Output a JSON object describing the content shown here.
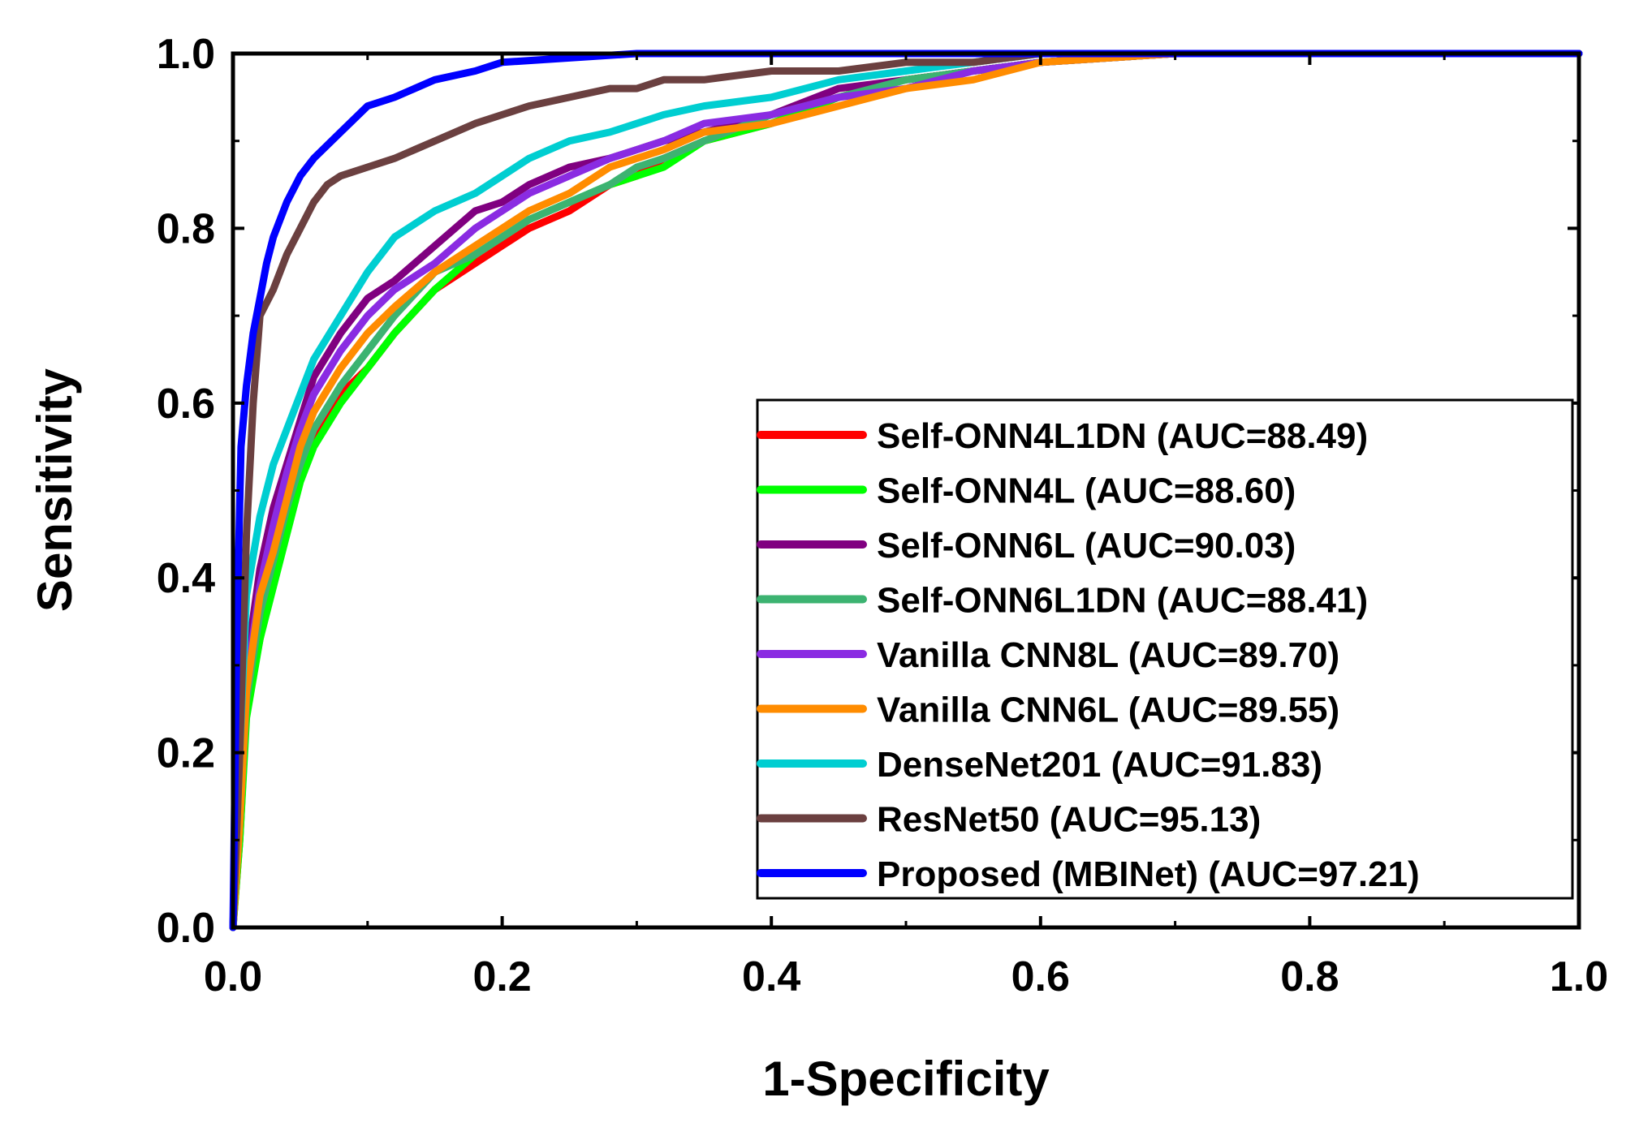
{
  "chart_data": {
    "type": "line",
    "title": "",
    "xlabel": "1-Specificity",
    "ylabel": "Sensitivity",
    "xlim": [
      0.0,
      1.0
    ],
    "ylim": [
      0.0,
      1.0
    ],
    "xticks": [
      "0.0",
      "0.2",
      "0.4",
      "0.6",
      "0.8",
      "1.0"
    ],
    "yticks": [
      "0.0",
      "0.2",
      "0.4",
      "0.6",
      "0.8",
      "1.0"
    ],
    "grid": false,
    "legend_position": "bottom-right",
    "series": [
      {
        "name": "Self-ONN4L1DN (AUC=88.49)",
        "color": "#ff0000",
        "x": [
          0,
          0.005,
          0.01,
          0.02,
          0.03,
          0.04,
          0.05,
          0.06,
          0.08,
          0.1,
          0.12,
          0.15,
          0.18,
          0.2,
          0.22,
          0.25,
          0.28,
          0.3,
          0.32,
          0.35,
          0.4,
          0.45,
          0.5,
          0.55,
          0.6,
          0.7,
          0.8,
          0.9,
          1.0
        ],
        "y": [
          0,
          0.1,
          0.25,
          0.33,
          0.4,
          0.46,
          0.52,
          0.56,
          0.61,
          0.64,
          0.68,
          0.73,
          0.76,
          0.78,
          0.8,
          0.82,
          0.85,
          0.86,
          0.88,
          0.9,
          0.92,
          0.95,
          0.97,
          0.98,
          0.99,
          1.0,
          1.0,
          1.0,
          1.0
        ]
      },
      {
        "name": "Self-ONN4L (AUC=88.60)",
        "color": "#00ff00",
        "x": [
          0,
          0.005,
          0.01,
          0.02,
          0.03,
          0.04,
          0.05,
          0.06,
          0.08,
          0.1,
          0.12,
          0.15,
          0.18,
          0.2,
          0.22,
          0.25,
          0.28,
          0.3,
          0.32,
          0.35,
          0.4,
          0.45,
          0.5,
          0.55,
          0.6,
          0.7,
          0.8,
          0.9,
          1.0
        ],
        "y": [
          0,
          0.1,
          0.24,
          0.33,
          0.39,
          0.45,
          0.51,
          0.55,
          0.6,
          0.64,
          0.68,
          0.73,
          0.77,
          0.79,
          0.81,
          0.83,
          0.85,
          0.86,
          0.87,
          0.9,
          0.92,
          0.95,
          0.97,
          0.98,
          0.99,
          1.0,
          1.0,
          1.0,
          1.0
        ]
      },
      {
        "name": "Self-ONN6L (AUC=90.03)",
        "color": "#800080",
        "x": [
          0,
          0.005,
          0.01,
          0.02,
          0.03,
          0.04,
          0.05,
          0.06,
          0.08,
          0.1,
          0.12,
          0.15,
          0.18,
          0.2,
          0.22,
          0.25,
          0.28,
          0.3,
          0.32,
          0.35,
          0.4,
          0.45,
          0.5,
          0.55,
          0.6,
          0.7,
          0.8,
          0.9,
          1.0
        ],
        "y": [
          0,
          0.15,
          0.3,
          0.41,
          0.48,
          0.53,
          0.58,
          0.63,
          0.68,
          0.72,
          0.74,
          0.78,
          0.82,
          0.83,
          0.85,
          0.87,
          0.88,
          0.89,
          0.9,
          0.91,
          0.93,
          0.96,
          0.97,
          0.98,
          0.99,
          1.0,
          1.0,
          1.0,
          1.0
        ]
      },
      {
        "name": "Self-ONN6L1DN (AUC=88.41)",
        "color": "#3cb371",
        "x": [
          0,
          0.005,
          0.01,
          0.02,
          0.03,
          0.04,
          0.05,
          0.06,
          0.08,
          0.1,
          0.12,
          0.15,
          0.18,
          0.2,
          0.22,
          0.25,
          0.28,
          0.3,
          0.32,
          0.35,
          0.4,
          0.45,
          0.5,
          0.55,
          0.6,
          0.7,
          0.8,
          0.9,
          1.0
        ],
        "y": [
          0,
          0.12,
          0.26,
          0.36,
          0.42,
          0.48,
          0.53,
          0.57,
          0.62,
          0.66,
          0.7,
          0.75,
          0.77,
          0.79,
          0.81,
          0.83,
          0.85,
          0.87,
          0.88,
          0.9,
          0.93,
          0.95,
          0.97,
          0.98,
          0.99,
          1.0,
          1.0,
          1.0,
          1.0
        ]
      },
      {
        "name": "Vanilla CNN8L (AUC=89.70)",
        "color": "#8a2be2",
        "x": [
          0,
          0.005,
          0.01,
          0.02,
          0.03,
          0.04,
          0.05,
          0.06,
          0.08,
          0.1,
          0.12,
          0.15,
          0.18,
          0.2,
          0.22,
          0.25,
          0.28,
          0.3,
          0.32,
          0.35,
          0.4,
          0.45,
          0.5,
          0.55,
          0.6,
          0.7,
          0.8,
          0.9,
          1.0
        ],
        "y": [
          0,
          0.14,
          0.28,
          0.39,
          0.46,
          0.52,
          0.57,
          0.61,
          0.66,
          0.7,
          0.73,
          0.76,
          0.8,
          0.82,
          0.84,
          0.86,
          0.88,
          0.89,
          0.9,
          0.92,
          0.93,
          0.95,
          0.96,
          0.98,
          0.99,
          1.0,
          1.0,
          1.0,
          1.0
        ]
      },
      {
        "name": "Vanilla CNN6L (AUC=89.55)",
        "color": "#ff8c00",
        "x": [
          0,
          0.005,
          0.01,
          0.02,
          0.03,
          0.04,
          0.05,
          0.06,
          0.08,
          0.1,
          0.12,
          0.15,
          0.18,
          0.2,
          0.22,
          0.25,
          0.28,
          0.3,
          0.32,
          0.35,
          0.4,
          0.45,
          0.5,
          0.55,
          0.6,
          0.7,
          0.8,
          0.9,
          1.0
        ],
        "y": [
          0,
          0.12,
          0.27,
          0.38,
          0.43,
          0.49,
          0.55,
          0.59,
          0.64,
          0.68,
          0.71,
          0.75,
          0.78,
          0.8,
          0.82,
          0.84,
          0.87,
          0.88,
          0.89,
          0.91,
          0.92,
          0.94,
          0.96,
          0.97,
          0.99,
          1.0,
          1.0,
          1.0,
          1.0
        ]
      },
      {
        "name": "DenseNet201 (AUC=91.83)",
        "color": "#00ced1",
        "x": [
          0,
          0.005,
          0.01,
          0.02,
          0.03,
          0.04,
          0.05,
          0.06,
          0.08,
          0.1,
          0.12,
          0.15,
          0.18,
          0.2,
          0.22,
          0.25,
          0.28,
          0.3,
          0.32,
          0.35,
          0.4,
          0.45,
          0.5,
          0.55,
          0.6,
          0.7,
          0.8,
          0.9,
          1.0
        ],
        "y": [
          0,
          0.2,
          0.38,
          0.47,
          0.53,
          0.57,
          0.61,
          0.65,
          0.7,
          0.75,
          0.79,
          0.82,
          0.84,
          0.86,
          0.88,
          0.9,
          0.91,
          0.92,
          0.93,
          0.94,
          0.95,
          0.97,
          0.98,
          0.99,
          1.0,
          1.0,
          1.0,
          1.0,
          1.0
        ]
      },
      {
        "name": "ResNet50 (AUC=95.13)",
        "color": "#6b4040",
        "x": [
          0,
          0.005,
          0.01,
          0.015,
          0.02,
          0.03,
          0.04,
          0.05,
          0.06,
          0.07,
          0.08,
          0.1,
          0.12,
          0.15,
          0.18,
          0.2,
          0.22,
          0.25,
          0.28,
          0.3,
          0.32,
          0.35,
          0.4,
          0.45,
          0.5,
          0.55,
          0.6,
          0.7,
          0.8,
          1.0
        ],
        "y": [
          0,
          0.2,
          0.45,
          0.6,
          0.7,
          0.73,
          0.77,
          0.8,
          0.83,
          0.85,
          0.86,
          0.87,
          0.88,
          0.9,
          0.92,
          0.93,
          0.94,
          0.95,
          0.96,
          0.96,
          0.97,
          0.97,
          0.98,
          0.98,
          0.99,
          0.99,
          1.0,
          1.0,
          1.0,
          1.0
        ]
      },
      {
        "name": "Proposed (MBINet) (AUC=97.21)",
        "color": "#0000ff",
        "x": [
          0,
          0.003,
          0.006,
          0.01,
          0.015,
          0.02,
          0.025,
          0.03,
          0.04,
          0.05,
          0.06,
          0.08,
          0.1,
          0.12,
          0.15,
          0.18,
          0.2,
          0.25,
          0.3,
          0.4,
          0.5,
          0.6,
          0.8,
          1.0
        ],
        "y": [
          0,
          0.35,
          0.55,
          0.62,
          0.68,
          0.72,
          0.76,
          0.79,
          0.83,
          0.86,
          0.88,
          0.91,
          0.94,
          0.95,
          0.97,
          0.98,
          0.99,
          0.995,
          1.0,
          1.0,
          1.0,
          1.0,
          1.0,
          1.0
        ]
      }
    ]
  }
}
